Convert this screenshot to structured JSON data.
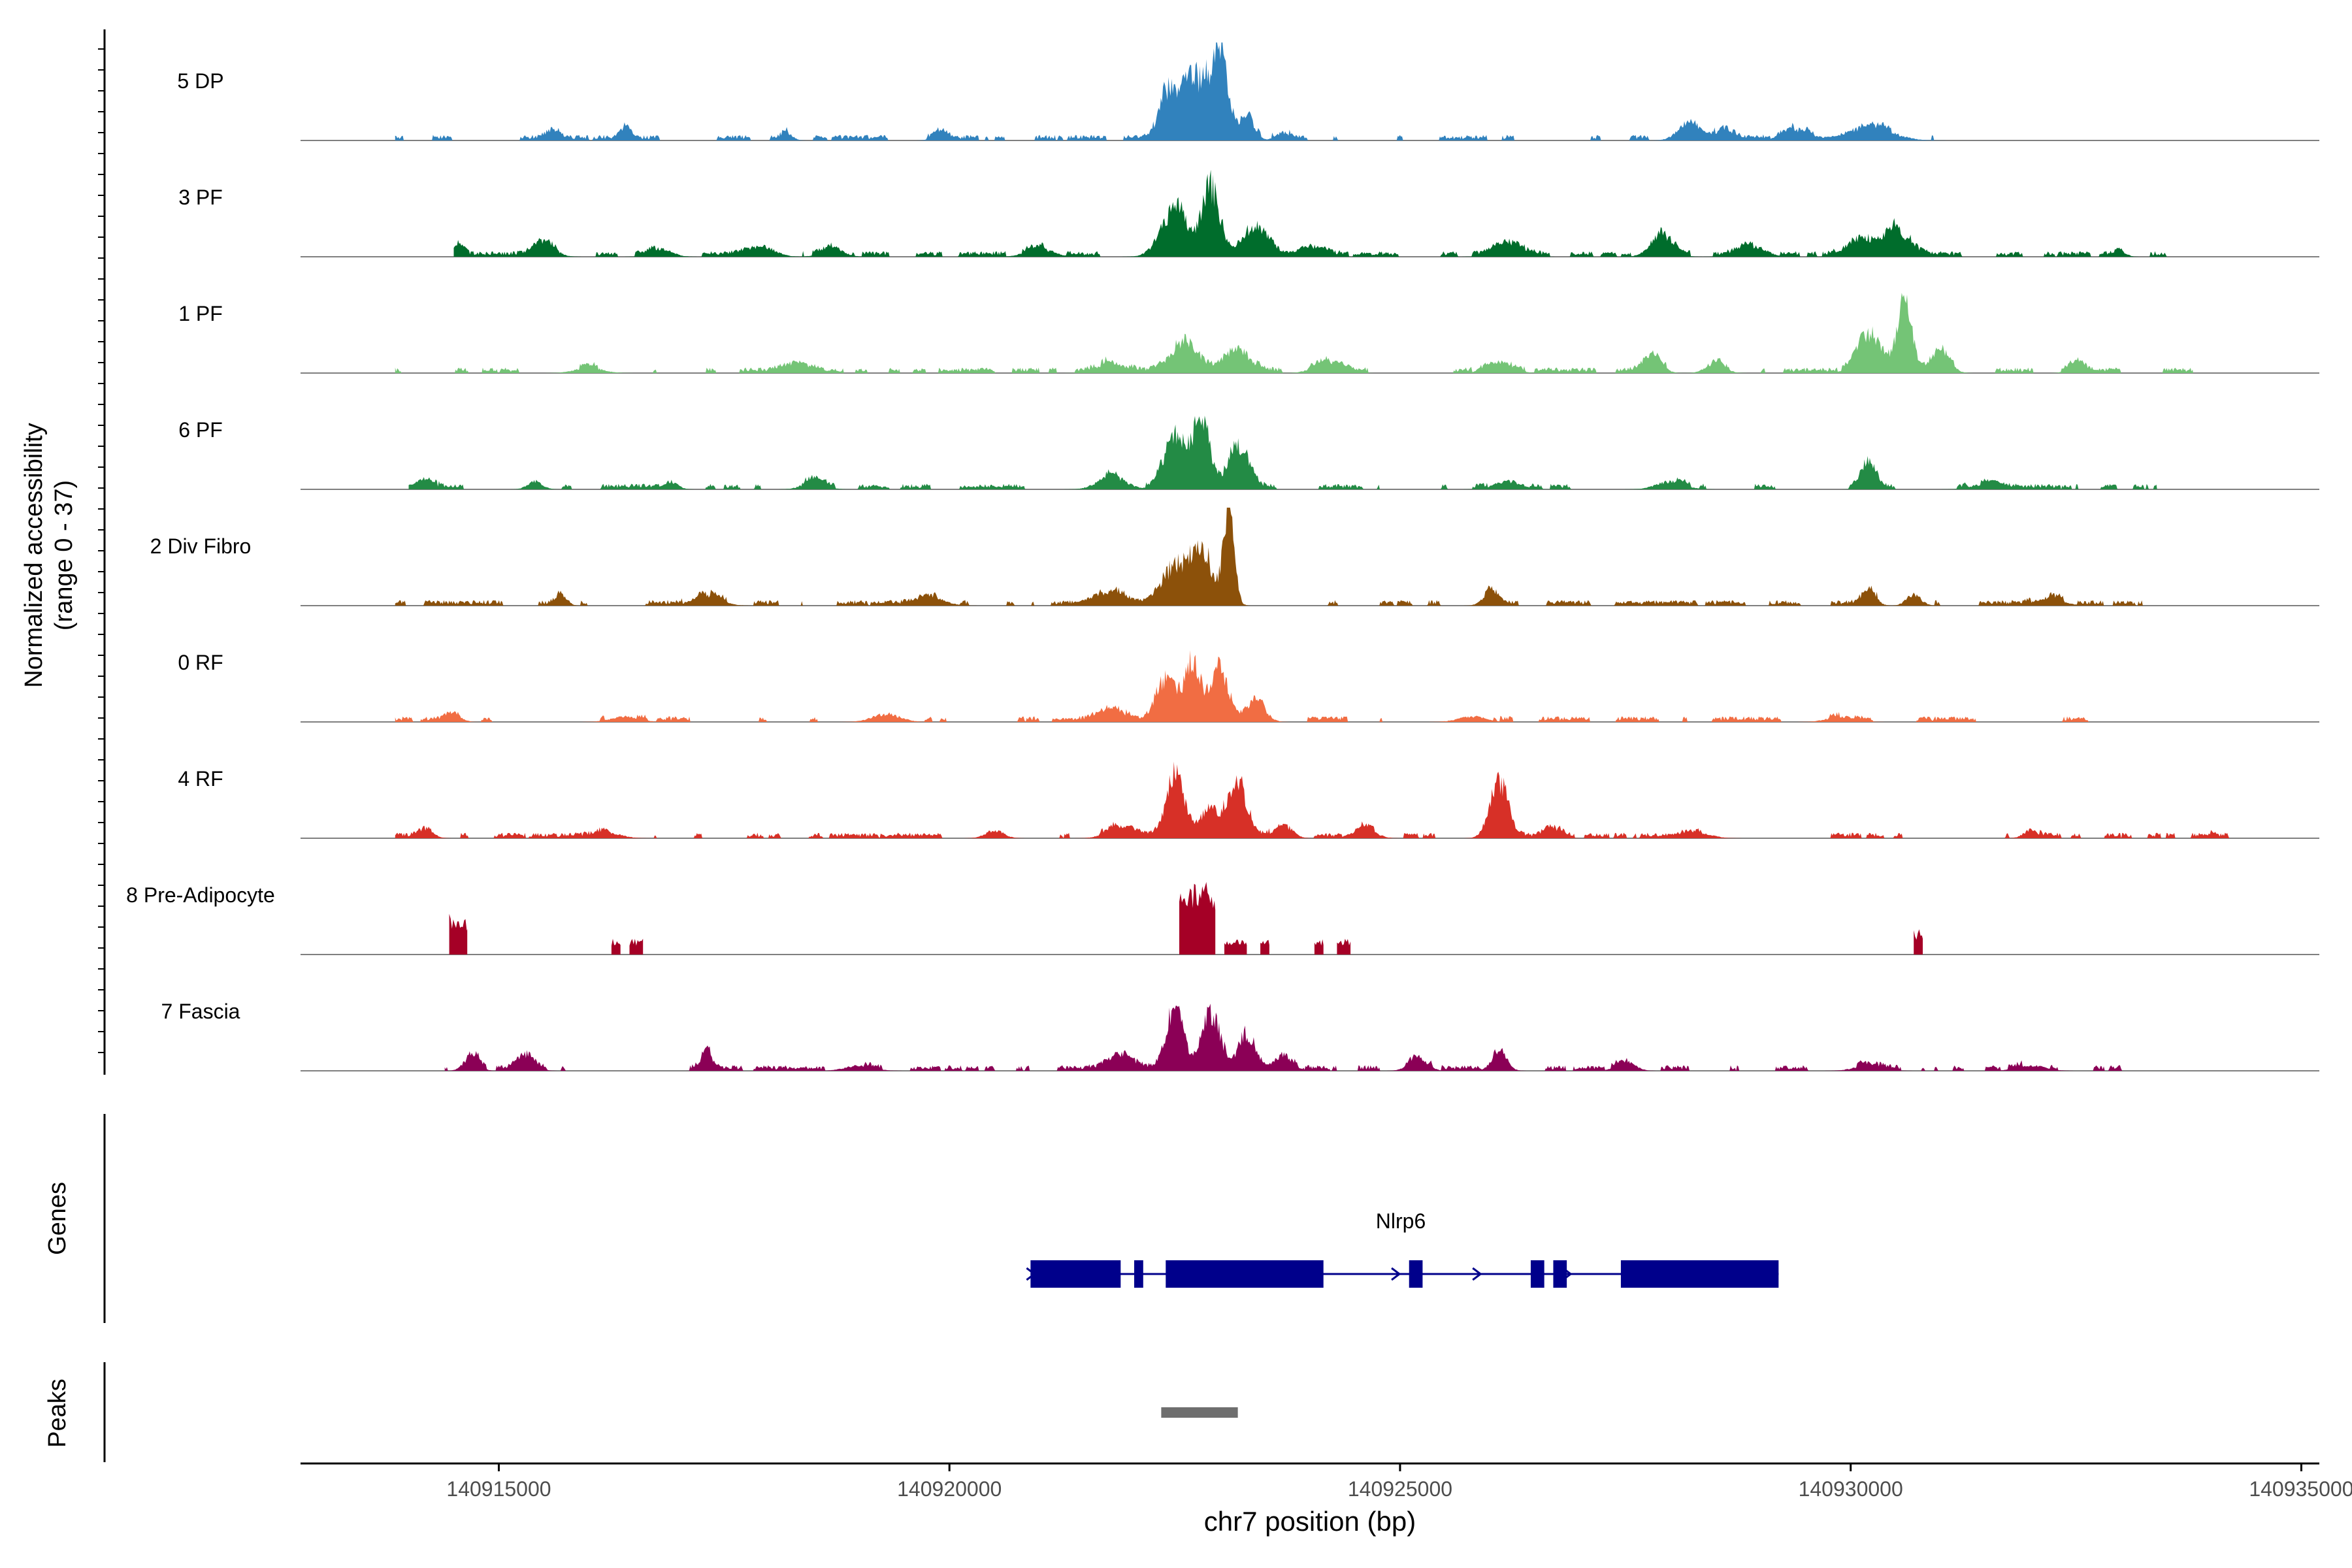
{
  "chart_data": {
    "type": "area",
    "title": "",
    "region": "chr7",
    "xlabel": "chr7 position (bp)",
    "ylabel_line1": "Normalized accessibility",
    "ylabel_line2": "(range 0 - 37)",
    "ylim": [
      0,
      37
    ],
    "xlim": [
      140912800,
      140935200
    ],
    "xticks": [
      140915000,
      140920000,
      140925000,
      140930000,
      140935000
    ],
    "xtick_labels": [
      "140915000",
      "140920000",
      "140925000",
      "140930000",
      "140935000"
    ],
    "series": [
      {
        "name": "5 DP",
        "color": "#3182bd",
        "data_start": 140913850,
        "data_end": 140931150,
        "peaks": [
          [
            140915600,
            3,
            80
          ],
          [
            140916400,
            4,
            60
          ],
          [
            140918200,
            3,
            60
          ],
          [
            140919900,
            3,
            80
          ],
          [
            140922700,
            25,
            150
          ],
          [
            140923000,
            32,
            90
          ],
          [
            140922400,
            14,
            90
          ],
          [
            140923300,
            10,
            80
          ],
          [
            140923700,
            3,
            80
          ],
          [
            140928200,
            6,
            120
          ],
          [
            140928600,
            5,
            90
          ],
          [
            140929400,
            4,
            150
          ],
          [
            140930200,
            5,
            250
          ],
          [
            140933400,
            2,
            60
          ]
        ]
      },
      {
        "name": "3 PF",
        "color": "#006d2c",
        "data_start": 140914500,
        "data_end": 140933700,
        "peaks": [
          [
            140914550,
            4,
            60
          ],
          [
            140915500,
            5,
            120
          ],
          [
            140916800,
            3,
            120
          ],
          [
            140917900,
            4,
            150
          ],
          [
            140918700,
            3,
            120
          ],
          [
            140921000,
            3,
            150
          ],
          [
            140922500,
            18,
            150
          ],
          [
            140922900,
            26,
            100
          ],
          [
            140923400,
            12,
            150
          ],
          [
            140924000,
            4,
            150
          ],
          [
            140926200,
            5,
            150
          ],
          [
            140927900,
            9,
            120
          ],
          [
            140928900,
            4,
            150
          ],
          [
            140930100,
            7,
            150
          ],
          [
            140930500,
            10,
            150
          ],
          [
            140933000,
            2,
            60
          ]
        ]
      },
      {
        "name": "1 PF",
        "color": "#74c476",
        "data_start": 140913850,
        "data_end": 140933800,
        "peaks": [
          [
            140916000,
            2,
            150
          ],
          [
            140918300,
            3,
            150
          ],
          [
            140921800,
            4,
            150
          ],
          [
            140922600,
            12,
            150
          ],
          [
            140923200,
            8,
            150
          ],
          [
            140924200,
            4,
            150
          ],
          [
            140926100,
            3,
            150
          ],
          [
            140927800,
            6,
            100
          ],
          [
            140928500,
            4,
            100
          ],
          [
            140930200,
            15,
            130
          ],
          [
            140930600,
            26,
            80
          ],
          [
            140931000,
            8,
            100
          ],
          [
            140932500,
            4,
            80
          ]
        ]
      },
      {
        "name": "6 PF",
        "color": "#238b45",
        "data_start": 140914000,
        "data_end": 140933400,
        "peaks": [
          [
            140914200,
            4,
            80
          ],
          [
            140915400,
            3,
            80
          ],
          [
            140916900,
            3,
            80
          ],
          [
            140918500,
            3,
            120
          ],
          [
            140921800,
            5,
            150
          ],
          [
            140922500,
            20,
            120
          ],
          [
            140922800,
            26,
            90
          ],
          [
            140923200,
            15,
            120
          ],
          [
            140926200,
            3,
            150
          ],
          [
            140928000,
            3,
            150
          ],
          [
            140930200,
            9,
            80
          ],
          [
            140931500,
            2,
            150
          ]
        ]
      },
      {
        "name": "2 Div Fibro",
        "color": "#8c510a",
        "data_start": 140913850,
        "data_end": 140934200,
        "peaks": [
          [
            140915700,
            4,
            60
          ],
          [
            140917300,
            4,
            150
          ],
          [
            140919800,
            3,
            150
          ],
          [
            140921800,
            5,
            150
          ],
          [
            140922500,
            13,
            150
          ],
          [
            140922800,
            19,
            120
          ],
          [
            140923100,
            34,
            60
          ],
          [
            140926000,
            5,
            80
          ],
          [
            140930200,
            5,
            80
          ],
          [
            140930700,
            4,
            80
          ],
          [
            140932200,
            3,
            150
          ]
        ]
      },
      {
        "name": "0 RF",
        "color": "#f16d43",
        "data_start": 140913850,
        "data_end": 140932700,
        "peaks": [
          [
            140914500,
            3,
            80
          ],
          [
            140916400,
            2,
            150
          ],
          [
            140919300,
            3,
            150
          ],
          [
            140921800,
            4,
            150
          ],
          [
            140922400,
            15,
            120
          ],
          [
            140922700,
            22,
            90
          ],
          [
            140923000,
            20,
            90
          ],
          [
            140923400,
            8,
            100
          ],
          [
            140925800,
            2,
            150
          ],
          [
            140929900,
            2,
            150
          ]
        ]
      },
      {
        "name": "4 RF",
        "color": "#d73027",
        "data_start": 140913850,
        "data_end": 140934200,
        "peaks": [
          [
            140914200,
            3,
            80
          ],
          [
            140916200,
            2,
            150
          ],
          [
            140920500,
            3,
            100
          ],
          [
            140921900,
            4,
            150
          ],
          [
            140922500,
            23,
            100
          ],
          [
            140922900,
            10,
            120
          ],
          [
            140923200,
            20,
            100
          ],
          [
            140923700,
            5,
            100
          ],
          [
            140924600,
            4,
            120
          ],
          [
            140926100,
            22,
            100
          ],
          [
            140926700,
            3,
            100
          ],
          [
            140928300,
            2,
            150
          ],
          [
            140932000,
            3,
            80
          ],
          [
            140934000,
            1,
            40
          ]
        ]
      },
      {
        "name": "8 Pre-Adipocyte",
        "color": "#a50026",
        "data_start": 140914400,
        "data_end": 140931000,
        "mode": "blocks",
        "blocks": [
          [
            140914450,
            140914650,
            16
          ],
          [
            140916250,
            140916350,
            6
          ],
          [
            140916450,
            140916600,
            6
          ],
          [
            140922550,
            140922950,
            28
          ],
          [
            140923050,
            140923300,
            6
          ],
          [
            140923450,
            140923550,
            6
          ],
          [
            140924050,
            140924150,
            6
          ],
          [
            140924300,
            140924450,
            6
          ],
          [
            140930700,
            140930800,
            10
          ]
        ]
      },
      {
        "name": "7 Fascia",
        "color": "#8b0056",
        "data_start": 140914400,
        "data_end": 140933650,
        "peaks": [
          [
            140914700,
            6,
            80
          ],
          [
            140915300,
            5,
            100
          ],
          [
            140917300,
            8,
            60
          ],
          [
            140919000,
            2,
            150
          ],
          [
            140921900,
            5,
            150
          ],
          [
            140922500,
            24,
            100
          ],
          [
            140922900,
            22,
            100
          ],
          [
            140923300,
            14,
            100
          ],
          [
            140923700,
            6,
            100
          ],
          [
            140925200,
            5,
            100
          ],
          [
            140926100,
            8,
            80
          ],
          [
            140927500,
            4,
            100
          ],
          [
            140930200,
            2,
            150
          ],
          [
            140932000,
            2,
            150
          ]
        ]
      }
    ],
    "genes": {
      "track_label": "Genes",
      "gene_name": "Nlrp6",
      "strand": "+",
      "start": 140920900,
      "end": 140929200,
      "exons": [
        [
          140920900,
          140921900
        ],
        [
          140922050,
          140922150
        ],
        [
          140922400,
          140924150
        ],
        [
          140925100,
          140925250
        ],
        [
          140926450,
          140926600
        ],
        [
          140926700,
          140926850
        ],
        [
          140927450,
          140929200
        ]
      ],
      "arrows": [
        140920900,
        140924950,
        140925850,
        140926850
      ]
    },
    "peaks_track": {
      "track_label": "Peaks",
      "regions": [
        [
          140922350,
          140923200
        ]
      ]
    }
  }
}
